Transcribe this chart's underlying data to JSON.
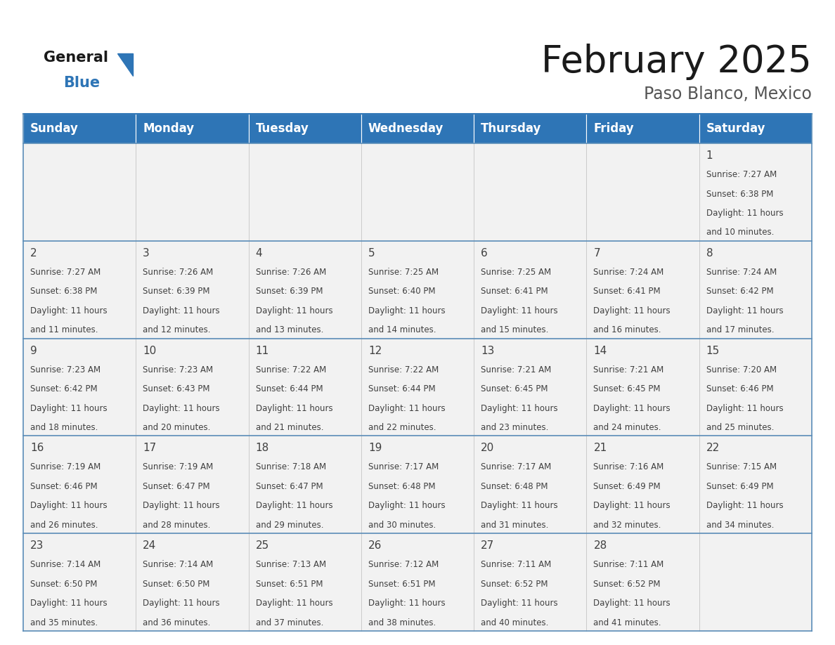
{
  "title": "February 2025",
  "subtitle": "Paso Blanco, Mexico",
  "header_color": "#2E75B6",
  "header_text_color": "#FFFFFF",
  "cell_bg_color": "#F2F2F2",
  "border_color": "#2E75B6",
  "row_border_color": "#5B8DB8",
  "day_number_color": "#404040",
  "info_text_color": "#404040",
  "days_of_week": [
    "Sunday",
    "Monday",
    "Tuesday",
    "Wednesday",
    "Thursday",
    "Friday",
    "Saturday"
  ],
  "calendar_data": [
    [
      null,
      null,
      null,
      null,
      null,
      null,
      {
        "day": "1",
        "sunrise": "7:27 AM",
        "sunset": "6:38 PM",
        "dl1": "Daylight: 11 hours",
        "dl2": "and 10 minutes."
      }
    ],
    [
      {
        "day": "2",
        "sunrise": "7:27 AM",
        "sunset": "6:38 PM",
        "dl1": "Daylight: 11 hours",
        "dl2": "and 11 minutes."
      },
      {
        "day": "3",
        "sunrise": "7:26 AM",
        "sunset": "6:39 PM",
        "dl1": "Daylight: 11 hours",
        "dl2": "and 12 minutes."
      },
      {
        "day": "4",
        "sunrise": "7:26 AM",
        "sunset": "6:39 PM",
        "dl1": "Daylight: 11 hours",
        "dl2": "and 13 minutes."
      },
      {
        "day": "5",
        "sunrise": "7:25 AM",
        "sunset": "6:40 PM",
        "dl1": "Daylight: 11 hours",
        "dl2": "and 14 minutes."
      },
      {
        "day": "6",
        "sunrise": "7:25 AM",
        "sunset": "6:41 PM",
        "dl1": "Daylight: 11 hours",
        "dl2": "and 15 minutes."
      },
      {
        "day": "7",
        "sunrise": "7:24 AM",
        "sunset": "6:41 PM",
        "dl1": "Daylight: 11 hours",
        "dl2": "and 16 minutes."
      },
      {
        "day": "8",
        "sunrise": "7:24 AM",
        "sunset": "6:42 PM",
        "dl1": "Daylight: 11 hours",
        "dl2": "and 17 minutes."
      }
    ],
    [
      {
        "day": "9",
        "sunrise": "7:23 AM",
        "sunset": "6:42 PM",
        "dl1": "Daylight: 11 hours",
        "dl2": "and 18 minutes."
      },
      {
        "day": "10",
        "sunrise": "7:23 AM",
        "sunset": "6:43 PM",
        "dl1": "Daylight: 11 hours",
        "dl2": "and 20 minutes."
      },
      {
        "day": "11",
        "sunrise": "7:22 AM",
        "sunset": "6:44 PM",
        "dl1": "Daylight: 11 hours",
        "dl2": "and 21 minutes."
      },
      {
        "day": "12",
        "sunrise": "7:22 AM",
        "sunset": "6:44 PM",
        "dl1": "Daylight: 11 hours",
        "dl2": "and 22 minutes."
      },
      {
        "day": "13",
        "sunrise": "7:21 AM",
        "sunset": "6:45 PM",
        "dl1": "Daylight: 11 hours",
        "dl2": "and 23 minutes."
      },
      {
        "day": "14",
        "sunrise": "7:21 AM",
        "sunset": "6:45 PM",
        "dl1": "Daylight: 11 hours",
        "dl2": "and 24 minutes."
      },
      {
        "day": "15",
        "sunrise": "7:20 AM",
        "sunset": "6:46 PM",
        "dl1": "Daylight: 11 hours",
        "dl2": "and 25 minutes."
      }
    ],
    [
      {
        "day": "16",
        "sunrise": "7:19 AM",
        "sunset": "6:46 PM",
        "dl1": "Daylight: 11 hours",
        "dl2": "and 26 minutes."
      },
      {
        "day": "17",
        "sunrise": "7:19 AM",
        "sunset": "6:47 PM",
        "dl1": "Daylight: 11 hours",
        "dl2": "and 28 minutes."
      },
      {
        "day": "18",
        "sunrise": "7:18 AM",
        "sunset": "6:47 PM",
        "dl1": "Daylight: 11 hours",
        "dl2": "and 29 minutes."
      },
      {
        "day": "19",
        "sunrise": "7:17 AM",
        "sunset": "6:48 PM",
        "dl1": "Daylight: 11 hours",
        "dl2": "and 30 minutes."
      },
      {
        "day": "20",
        "sunrise": "7:17 AM",
        "sunset": "6:48 PM",
        "dl1": "Daylight: 11 hours",
        "dl2": "and 31 minutes."
      },
      {
        "day": "21",
        "sunrise": "7:16 AM",
        "sunset": "6:49 PM",
        "dl1": "Daylight: 11 hours",
        "dl2": "and 32 minutes."
      },
      {
        "day": "22",
        "sunrise": "7:15 AM",
        "sunset": "6:49 PM",
        "dl1": "Daylight: 11 hours",
        "dl2": "and 34 minutes."
      }
    ],
    [
      {
        "day": "23",
        "sunrise": "7:14 AM",
        "sunset": "6:50 PM",
        "dl1": "Daylight: 11 hours",
        "dl2": "and 35 minutes."
      },
      {
        "day": "24",
        "sunrise": "7:14 AM",
        "sunset": "6:50 PM",
        "dl1": "Daylight: 11 hours",
        "dl2": "and 36 minutes."
      },
      {
        "day": "25",
        "sunrise": "7:13 AM",
        "sunset": "6:51 PM",
        "dl1": "Daylight: 11 hours",
        "dl2": "and 37 minutes."
      },
      {
        "day": "26",
        "sunrise": "7:12 AM",
        "sunset": "6:51 PM",
        "dl1": "Daylight: 11 hours",
        "dl2": "and 38 minutes."
      },
      {
        "day": "27",
        "sunrise": "7:11 AM",
        "sunset": "6:52 PM",
        "dl1": "Daylight: 11 hours",
        "dl2": "and 40 minutes."
      },
      {
        "day": "28",
        "sunrise": "7:11 AM",
        "sunset": "6:52 PM",
        "dl1": "Daylight: 11 hours",
        "dl2": "and 41 minutes."
      },
      null
    ]
  ],
  "title_fontsize": 38,
  "subtitle_fontsize": 17,
  "header_fontsize": 12,
  "day_number_fontsize": 11,
  "info_fontsize": 8.5,
  "logo_general_color": "#1a1a1a",
  "logo_blue_color": "#2E75B6",
  "logo_triangle_color": "#2E75B6"
}
